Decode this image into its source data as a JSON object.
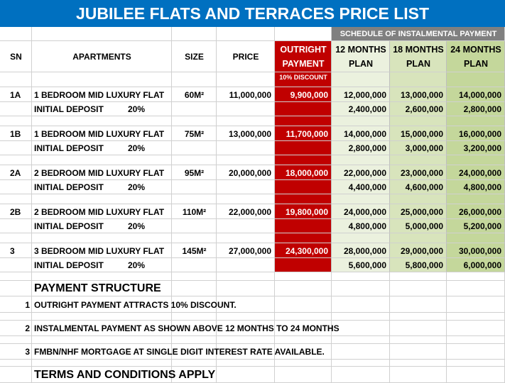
{
  "title": "JUBILEE FLATS AND TERRACES PRICE LIST",
  "schedule_header": "SCHEDULE OF INSTALMENTAL PAYMENT",
  "table": {
    "headers": [
      "SN",
      "APARTMENTS",
      "SIZE",
      "PRICE",
      "OUTRIGHT PAYMENT",
      "12 MONTHS PLAN",
      "18 MONTHS PLAN",
      "24 MONTHS PLAN"
    ],
    "discount_note": "10% DISCOUNT",
    "rows": [
      {
        "sn": "1A",
        "apartment": "1 BEDROOM MID LUXURY FLAT",
        "size": "60M²",
        "price": "11,000,000",
        "outright": "9,900,000",
        "plan_12": "12,000,000",
        "plan_18": "13,000,000",
        "plan_24": "14,000,000",
        "deposit_label": "INITIAL DEPOSIT",
        "deposit_percent": "20%",
        "deposit_12": "2,400,000",
        "deposit_18": "2,600,000",
        "deposit_24": "2,800,000"
      },
      {
        "sn": "1B",
        "apartment": "1 BEDROOM MID LUXURY FLAT",
        "size": "75M²",
        "price": "13,000,000",
        "outright": "11,700,000",
        "plan_12": "14,000,000",
        "plan_18": "15,000,000",
        "plan_24": "16,000,000",
        "deposit_label": "INITIAL DEPOSIT",
        "deposit_percent": "20%",
        "deposit_12": "2,800,000",
        "deposit_18": "3,000,000",
        "deposit_24": "3,200,000"
      },
      {
        "sn": "2A",
        "apartment": "2 BEDROOM MID LUXURY FLAT",
        "size": "95M²",
        "price": "20,000,000",
        "outright": "18,000,000",
        "plan_12": "22,000,000",
        "plan_18": "23,000,000",
        "plan_24": "24,000,000",
        "deposit_label": "INITIAL DEPOSIT",
        "deposit_percent": "20%",
        "deposit_12": "4,400,000",
        "deposit_18": "4,600,000",
        "deposit_24": "4,800,000"
      },
      {
        "sn": "2B",
        "apartment": "2 BEDROOM MID LUXURY FLAT",
        "size": "110M²",
        "price": "22,000,000",
        "outright": "19,800,000",
        "plan_12": "24,000,000",
        "plan_18": "25,000,000",
        "plan_24": "26,000,000",
        "deposit_label": "INITIAL DEPOSIT",
        "deposit_percent": "20%",
        "deposit_12": "4,800,000",
        "deposit_18": "5,000,000",
        "deposit_24": "5,200,000"
      },
      {
        "sn": "3",
        "apartment": "3 BEDROOM MID LUXURY FLAT",
        "size": "145M²",
        "price": "27,000,000",
        "outright": "24,300,000",
        "plan_12": "28,000,000",
        "plan_18": "29,000,000",
        "plan_24": "30,000,000",
        "deposit_label": "INITIAL DEPOSIT",
        "deposit_percent": "20%",
        "deposit_12": "5,600,000",
        "deposit_18": "5,800,000",
        "deposit_24": "6,000,000"
      }
    ]
  },
  "payment_structure": {
    "heading": "PAYMENT STRUCTURE",
    "items": [
      {
        "number": "1",
        "text": "OUTRIGHT PAYMENT ATTRACTS 10% DISCOUNT."
      },
      {
        "number": "2",
        "text": "INSTALMENTAL PAYMENT AS SHOWN ABOVE 12 MONTHS TO 24 MONTHS"
      },
      {
        "number": "3",
        "text": "FMBN/NHF MORTGAGE AT SINGLE DIGIT INTEREST RATE AVAILABLE."
      }
    ]
  },
  "footer": "TERMS AND CONDITIONS APPLY"
}
